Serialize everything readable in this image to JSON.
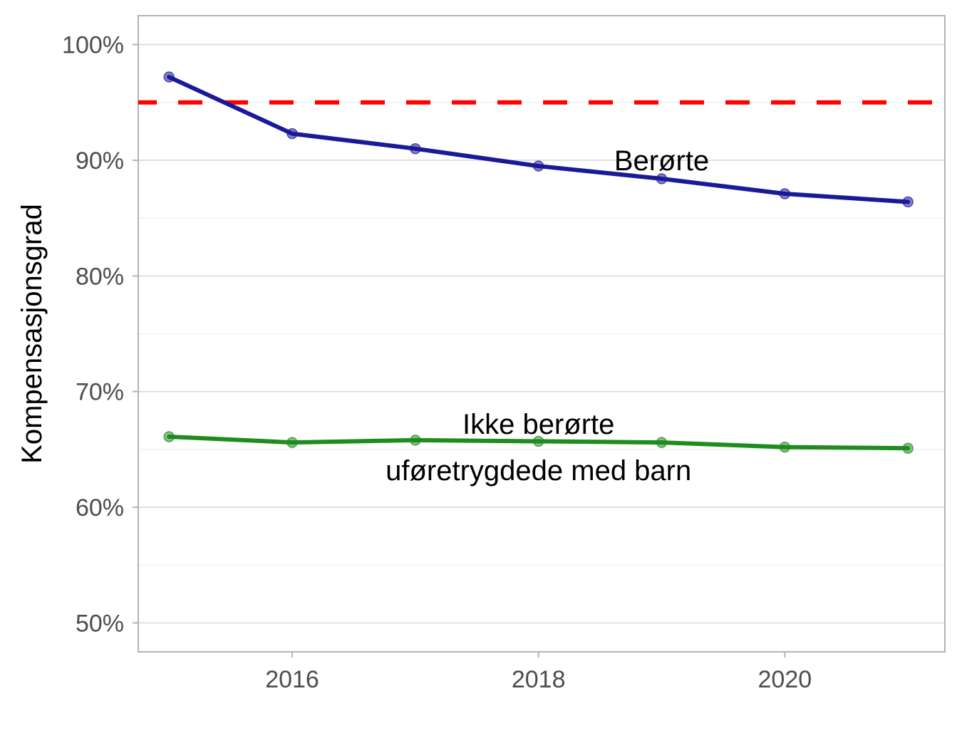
{
  "chart_data": {
    "type": "line",
    "title": "",
    "xlabel": "",
    "ylabel": "Kompensasjonsgrad",
    "x": [
      2015,
      2016,
      2017,
      2018,
      2019,
      2020,
      2021
    ],
    "xlim": [
      2014.75,
      2021.3
    ],
    "ylim": [
      47.5,
      102.5
    ],
    "x_ticks": [
      2016,
      2018,
      2020
    ],
    "x_tick_labels": [
      "2016",
      "2018",
      "2020"
    ],
    "y_ticks": [
      50,
      60,
      70,
      80,
      90,
      100
    ],
    "y_tick_labels": [
      "50%",
      "60%",
      "70%",
      "80%",
      "90%",
      "100%"
    ],
    "grid": true,
    "series": [
      {
        "label": "Berørte",
        "color": "#1a1a99",
        "values": [
          97.2,
          92.3,
          91.0,
          89.5,
          88.4,
          87.1,
          86.4
        ]
      },
      {
        "label": "Ikke berørte uføretrygdede med barn",
        "color": "#1e8c1e",
        "values": [
          66.1,
          65.6,
          65.8,
          65.7,
          65.6,
          65.2,
          65.1
        ]
      }
    ],
    "reference_line": {
      "y": 95,
      "color": "#ff0000",
      "style": "dashed"
    },
    "annotations": [
      {
        "text": "Berørte",
        "x": 2019,
        "y": 90.0
      },
      {
        "text": "Ikke berørte",
        "x": 2018,
        "y": 67.2
      },
      {
        "text": "uføretrygdede med barn",
        "x": 2018,
        "y": 63.2
      }
    ]
  }
}
